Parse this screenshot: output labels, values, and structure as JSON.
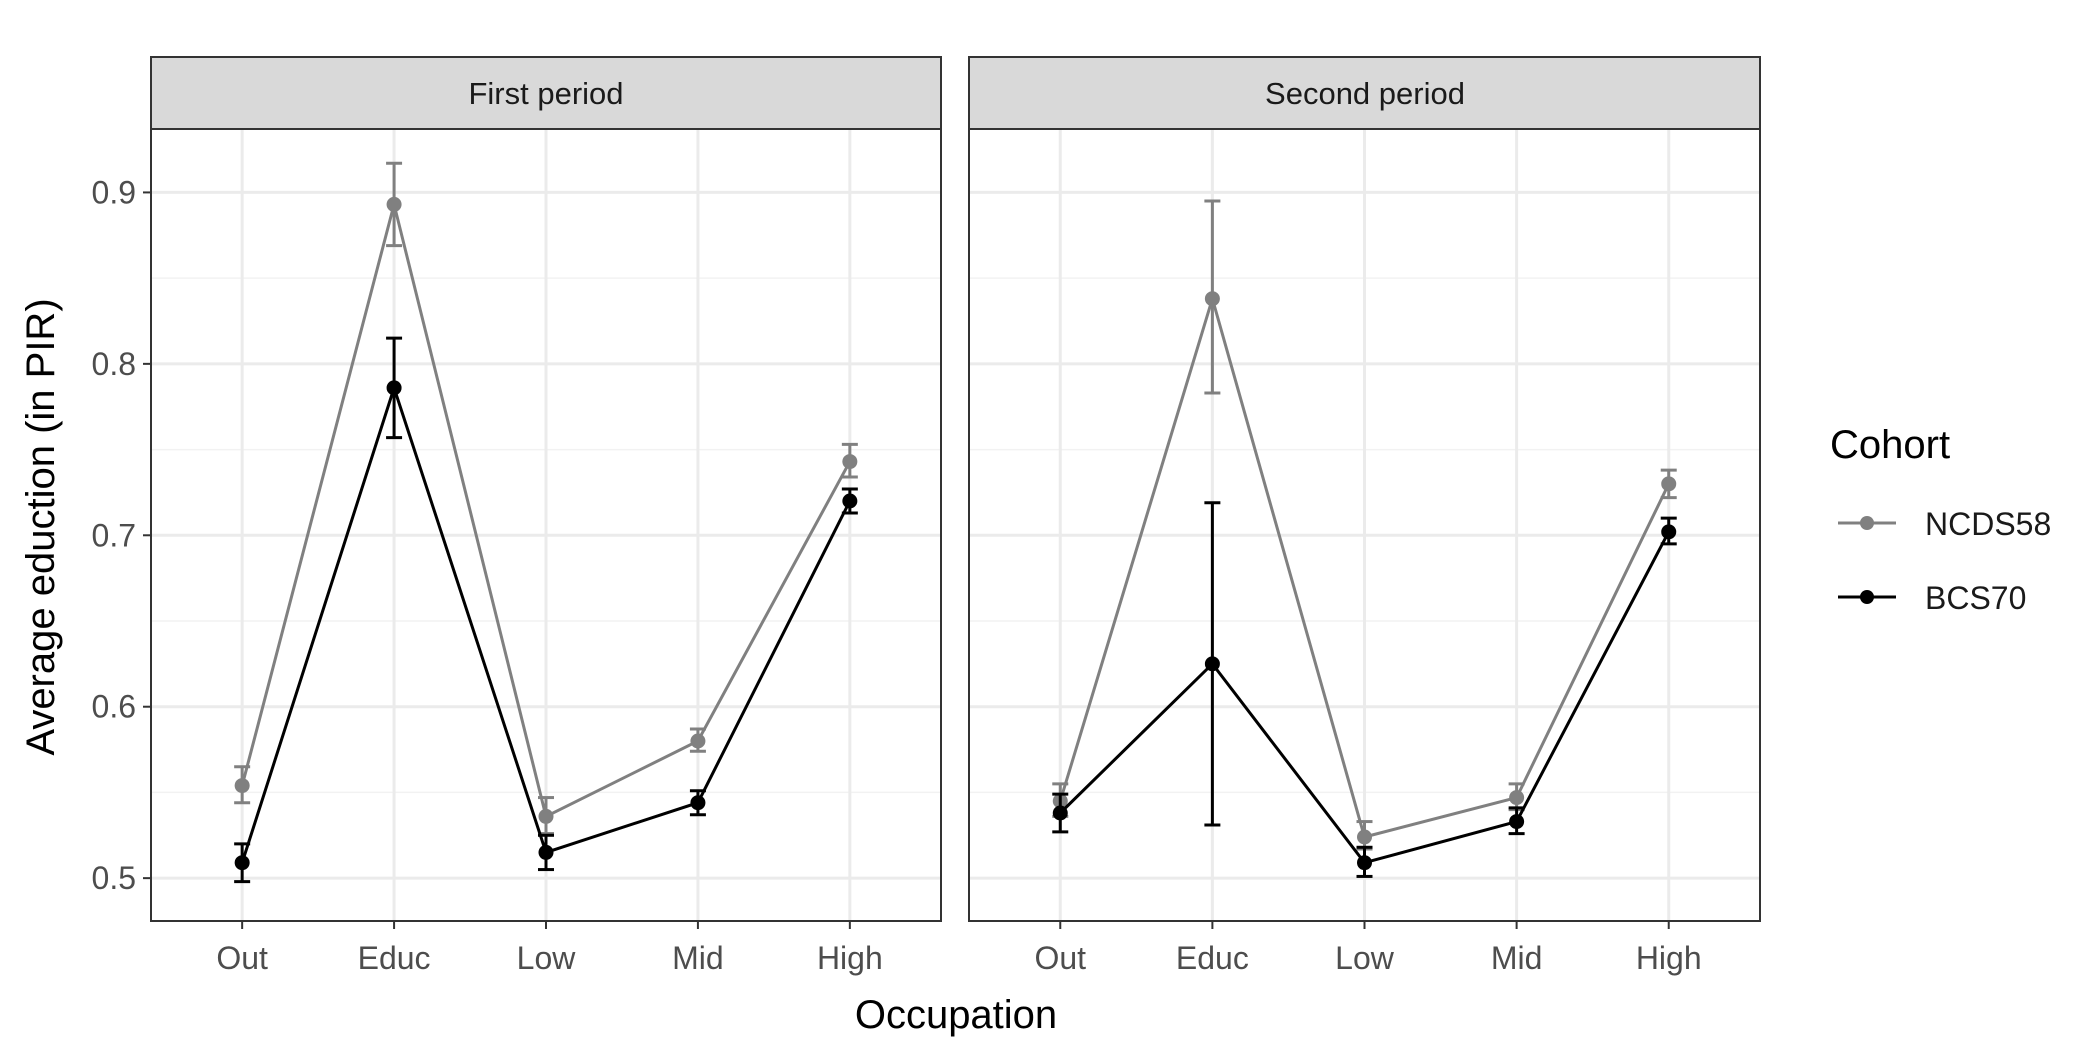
{
  "chart_data": {
    "type": "line",
    "facet_by": "period",
    "panels": [
      {
        "title": "First period"
      },
      {
        "title": "Second period"
      }
    ],
    "categories": [
      "Out",
      "Educ",
      "Low",
      "Mid",
      "High"
    ],
    "xlabel": "Occupation",
    "ylabel": "Average eduction (in PIR)",
    "ylim": [
      0.475,
      0.937
    ],
    "yticks": [
      0.5,
      0.6,
      0.7,
      0.8,
      0.9
    ],
    "ytick_labels": [
      "0.5",
      "0.6",
      "0.7",
      "0.8",
      "0.9"
    ],
    "grid": true,
    "error_bars": true,
    "legend": {
      "title": "Cohort",
      "position": "right"
    },
    "series": [
      {
        "name": "NCDS58",
        "color": "#808080",
        "panels": [
          {
            "values": [
              0.554,
              0.893,
              0.536,
              0.58,
              0.743
            ],
            "lower": [
              0.544,
              0.869,
              0.526,
              0.574,
              0.734
            ],
            "upper": [
              0.565,
              0.917,
              0.547,
              0.587,
              0.753
            ]
          },
          {
            "values": [
              0.545,
              0.838,
              0.524,
              0.547,
              0.73
            ],
            "lower": [
              0.536,
              0.783,
              0.517,
              0.54,
              0.722
            ],
            "upper": [
              0.555,
              0.895,
              0.533,
              0.555,
              0.738
            ]
          }
        ]
      },
      {
        "name": "BCS70",
        "color": "#000000",
        "panels": [
          {
            "values": [
              0.509,
              0.786,
              0.515,
              0.544,
              0.72
            ],
            "lower": [
              0.498,
              0.757,
              0.505,
              0.537,
              0.713
            ],
            "upper": [
              0.52,
              0.815,
              0.525,
              0.551,
              0.727
            ]
          },
          {
            "values": [
              0.538,
              0.625,
              0.509,
              0.533,
              0.702
            ],
            "lower": [
              0.527,
              0.531,
              0.501,
              0.526,
              0.695
            ],
            "upper": [
              0.549,
              0.719,
              0.518,
              0.541,
              0.71
            ]
          }
        ]
      }
    ]
  }
}
